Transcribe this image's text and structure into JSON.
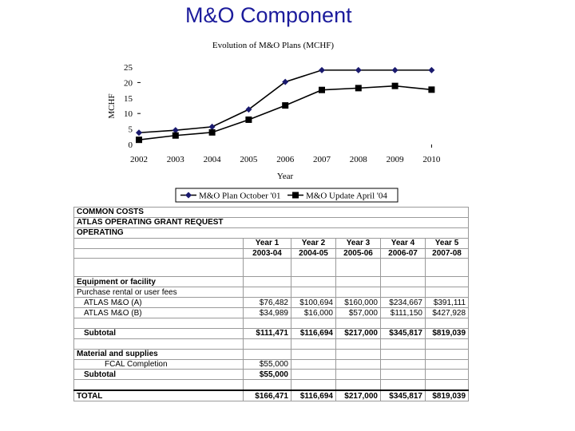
{
  "slide": {
    "title": "M&O Component"
  },
  "chart_data": {
    "type": "line",
    "title": "Evolution of M&O Plans (MCHF)",
    "xlabel": "Year",
    "ylabel": "MCHF",
    "categories": [
      "2002",
      "2003",
      "2004",
      "2005",
      "2006",
      "2007",
      "2008",
      "2009",
      "2010"
    ],
    "ylim": [
      0,
      25
    ],
    "yticks": [
      "0",
      "5",
      "10",
      "15",
      "20",
      "25"
    ],
    "grid": false,
    "legend_position": "bottom",
    "series": [
      {
        "name": "M&O Plan October '01",
        "marker": "diamond",
        "color": "#1a1a6e",
        "values": [
          3.8,
          4.6,
          5.7,
          11.3,
          20.2,
          24.0,
          24.0,
          24.0,
          24.0
        ]
      },
      {
        "name": "M&O Update April '04",
        "marker": "square",
        "color": "#000000",
        "values": [
          1.5,
          2.9,
          3.9,
          8.0,
          12.6,
          17.6,
          18.2,
          18.9,
          17.7
        ]
      }
    ]
  },
  "table": {
    "header_lines": [
      "COMMON COSTS",
      "ATLAS OPERATING GRANT REQUEST",
      "OPERATING"
    ],
    "years": [
      "Year 1",
      "Year 2",
      "Year 3",
      "Year 4",
      "Year 5"
    ],
    "periods": [
      "2003-04",
      "2004-05",
      "2005-06",
      "2006-07",
      "2007-08"
    ],
    "equipment_title": "Equipment or facility",
    "purchase_label": "Purchase rental or user fees",
    "atlas_a": {
      "label": "ATLAS M&O (A)",
      "values": [
        "$76,482",
        "$100,694",
        "$160,000",
        "$234,667",
        "$391,111"
      ]
    },
    "atlas_b": {
      "label": "ATLAS M&O (B)",
      "values": [
        "$34,989",
        "$16,000",
        "$57,000",
        "$111,150",
        "$427,928"
      ]
    },
    "subtotal1": {
      "label": "Subtotal",
      "values": [
        "$111,471",
        "$116,694",
        "$217,000",
        "$345,817",
        "$819,039"
      ]
    },
    "material_title": "Material and supplies",
    "fcal": {
      "label": "FCAL Completion",
      "value": "$55,000"
    },
    "subtotal2": {
      "label": "Subtotal",
      "value": "$55,000"
    },
    "total": {
      "label": "TOTAL",
      "values": [
        "$166,471",
        "$116,694",
        "$217,000",
        "$345,817",
        "$819,039"
      ]
    }
  }
}
